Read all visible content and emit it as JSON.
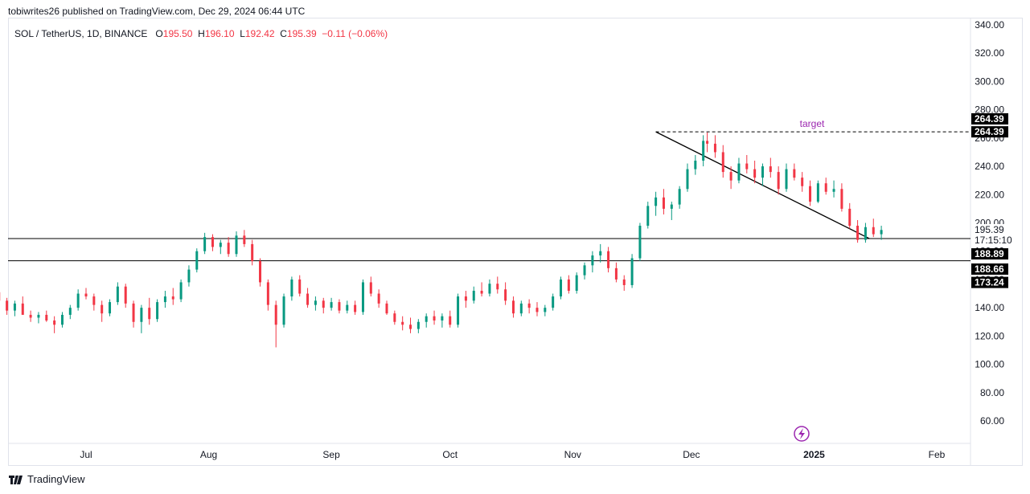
{
  "header": {
    "published": "tobiwrites26 published on TradingView.com, Dec 29, 2024 06:44 UTC"
  },
  "legend": {
    "symbol": "SOL / TetherUS, 1D, BINANCE",
    "o_label": "O",
    "o_value": "195.50",
    "h_label": "H",
    "h_value": "196.10",
    "l_label": "L",
    "l_value": "192.42",
    "c_label": "C",
    "c_value": "195.39",
    "change": "−0.11 (−0.06%)"
  },
  "footer": {
    "brand": "TradingView"
  },
  "colors": {
    "up": "#089981",
    "down": "#f23645",
    "target": "#9c27b0",
    "line": "#000000"
  },
  "chart_data": {
    "type": "candlestick",
    "title": "",
    "y_ticks": [
      "60.00",
      "80.00",
      "100.00",
      "120.00",
      "140.00",
      "160.00",
      "180.00",
      "200.00",
      "220.00",
      "240.00",
      "260.00",
      "280.00",
      "300.00",
      "320.00",
      "340.00"
    ],
    "x_ticks": [
      "Jul",
      "Aug",
      "Sep",
      "Oct",
      "Nov",
      "Dec",
      "2025",
      "Feb"
    ],
    "ylim": [
      48,
      348
    ],
    "x_range": [
      "2024-06-01",
      "2025-02-18"
    ],
    "grid": false,
    "price_labels": [
      "264.39",
      "264.39",
      "195.39",
      "17:15:10",
      "188.89",
      "188.66",
      "173.24"
    ],
    "target_label": "target",
    "horizontal_lines": [
      188.89,
      173.24
    ],
    "target_level": 264.39,
    "trendline": {
      "start": [
        "2024-11-22",
        264.39
      ],
      "end": [
        "2025-01-15",
        188.89
      ]
    },
    "ohlc": [
      [
        "2024-06-01",
        156,
        160,
        146,
        150
      ],
      [
        "2024-06-03",
        150,
        153,
        145,
        148
      ],
      [
        "2024-06-05",
        148,
        152,
        142,
        147
      ],
      [
        "2024-06-07",
        147,
        154,
        143,
        151
      ],
      [
        "2024-06-09",
        151,
        156,
        147,
        145
      ],
      [
        "2024-06-11",
        145,
        147,
        135,
        138
      ],
      [
        "2024-06-13",
        138,
        145,
        134,
        143
      ],
      [
        "2024-06-15",
        143,
        148,
        138,
        135
      ],
      [
        "2024-06-17",
        135,
        138,
        130,
        133
      ],
      [
        "2024-06-19",
        133,
        137,
        129,
        135
      ],
      [
        "2024-06-21",
        135,
        138,
        130,
        131
      ],
      [
        "2024-06-23",
        131,
        134,
        122,
        128
      ],
      [
        "2024-06-25",
        128,
        137,
        126,
        135
      ],
      [
        "2024-06-27",
        135,
        142,
        132,
        140
      ],
      [
        "2024-06-29",
        140,
        153,
        138,
        150
      ],
      [
        "2024-07-01",
        150,
        154,
        146,
        148
      ],
      [
        "2024-07-03",
        148,
        150,
        138,
        142
      ],
      [
        "2024-07-05",
        142,
        145,
        130,
        136
      ],
      [
        "2024-07-07",
        136,
        146,
        134,
        144
      ],
      [
        "2024-07-09",
        144,
        158,
        142,
        155
      ],
      [
        "2024-07-11",
        155,
        157,
        140,
        143
      ],
      [
        "2024-07-13",
        143,
        145,
        126,
        130
      ],
      [
        "2024-07-15",
        130,
        142,
        122,
        140
      ],
      [
        "2024-07-17",
        140,
        147,
        128,
        132
      ],
      [
        "2024-07-19",
        132,
        146,
        130,
        144
      ],
      [
        "2024-07-21",
        144,
        152,
        140,
        148
      ],
      [
        "2024-07-23",
        148,
        154,
        142,
        146
      ],
      [
        "2024-07-25",
        146,
        160,
        144,
        158
      ],
      [
        "2024-07-27",
        158,
        170,
        155,
        167
      ],
      [
        "2024-07-29",
        167,
        182,
        165,
        180
      ],
      [
        "2024-07-31",
        180,
        193,
        178,
        190
      ],
      [
        "2024-08-02",
        190,
        192,
        180,
        183
      ],
      [
        "2024-08-04",
        183,
        188,
        178,
        186
      ],
      [
        "2024-08-06",
        186,
        190,
        176,
        178
      ],
      [
        "2024-08-08",
        178,
        194,
        176,
        191
      ],
      [
        "2024-08-10",
        191,
        195,
        183,
        185
      ],
      [
        "2024-08-12",
        185,
        188,
        170,
        173
      ],
      [
        "2024-08-14",
        173,
        175,
        155,
        158
      ],
      [
        "2024-08-16",
        158,
        160,
        138,
        142
      ],
      [
        "2024-08-18",
        142,
        145,
        112,
        128
      ],
      [
        "2024-08-20",
        128,
        150,
        126,
        148
      ],
      [
        "2024-08-22",
        148,
        162,
        145,
        160
      ],
      [
        "2024-08-24",
        160,
        163,
        148,
        150
      ],
      [
        "2024-08-26",
        150,
        154,
        140,
        142
      ],
      [
        "2024-08-28",
        142,
        148,
        138,
        145
      ],
      [
        "2024-08-30",
        145,
        147,
        136,
        140
      ],
      [
        "2024-09-01",
        140,
        147,
        138,
        144
      ],
      [
        "2024-09-03",
        144,
        146,
        136,
        138
      ],
      [
        "2024-09-05",
        138,
        145,
        136,
        142
      ],
      [
        "2024-09-07",
        142,
        145,
        135,
        137
      ],
      [
        "2024-09-09",
        137,
        160,
        135,
        158
      ],
      [
        "2024-09-11",
        158,
        162,
        148,
        150
      ],
      [
        "2024-09-13",
        150,
        153,
        140,
        143
      ],
      [
        "2024-09-15",
        143,
        145,
        135,
        136
      ],
      [
        "2024-09-17",
        136,
        138,
        128,
        130
      ],
      [
        "2024-09-19",
        130,
        134,
        124,
        128
      ],
      [
        "2024-09-21",
        128,
        133,
        122,
        125
      ],
      [
        "2024-09-23",
        125,
        132,
        122,
        130
      ],
      [
        "2024-09-25",
        130,
        136,
        126,
        134
      ],
      [
        "2024-09-27",
        134,
        138,
        128,
        131
      ],
      [
        "2024-09-29",
        131,
        136,
        126,
        134
      ],
      [
        "2024-10-01",
        134,
        138,
        126,
        128
      ],
      [
        "2024-10-03",
        128,
        150,
        126,
        148
      ],
      [
        "2024-10-05",
        148,
        152,
        140,
        145
      ],
      [
        "2024-10-07",
        145,
        155,
        143,
        152
      ],
      [
        "2024-10-09",
        152,
        158,
        148,
        150
      ],
      [
        "2024-10-11",
        150,
        160,
        148,
        157
      ],
      [
        "2024-10-13",
        157,
        162,
        150,
        153
      ],
      [
        "2024-10-15",
        153,
        158,
        142,
        145
      ],
      [
        "2024-10-17",
        145,
        148,
        133,
        136
      ],
      [
        "2024-10-19",
        136,
        145,
        134,
        143
      ],
      [
        "2024-10-21",
        143,
        146,
        136,
        140
      ],
      [
        "2024-10-23",
        140,
        144,
        134,
        137
      ],
      [
        "2024-10-25",
        137,
        142,
        134,
        140
      ],
      [
        "2024-10-27",
        140,
        150,
        138,
        148
      ],
      [
        "2024-10-29",
        148,
        162,
        146,
        160
      ],
      [
        "2024-10-31",
        160,
        163,
        150,
        152
      ],
      [
        "2024-11-02",
        152,
        165,
        150,
        163
      ],
      [
        "2024-11-04",
        163,
        172,
        160,
        170
      ],
      [
        "2024-11-06",
        170,
        180,
        165,
        177
      ],
      [
        "2024-11-08",
        177,
        185,
        172,
        180
      ],
      [
        "2024-11-10",
        180,
        183,
        165,
        168
      ],
      [
        "2024-11-12",
        168,
        172,
        158,
        160
      ],
      [
        "2024-11-14",
        160,
        163,
        152,
        156
      ],
      [
        "2024-11-16",
        156,
        178,
        154,
        175
      ],
      [
        "2024-11-18",
        175,
        200,
        173,
        198
      ],
      [
        "2024-11-20",
        198,
        215,
        196,
        212
      ],
      [
        "2024-11-22",
        212,
        222,
        205,
        218
      ],
      [
        "2024-11-24",
        218,
        224,
        206,
        210
      ],
      [
        "2024-11-26",
        210,
        215,
        202,
        213
      ],
      [
        "2024-11-28",
        213,
        226,
        210,
        224
      ],
      [
        "2024-11-30",
        224,
        242,
        222,
        238
      ],
      [
        "2024-12-02",
        238,
        248,
        234,
        244
      ],
      [
        "2024-12-04",
        244,
        262,
        240,
        258
      ],
      [
        "2024-12-05",
        258,
        264,
        250,
        256
      ],
      [
        "2024-12-07",
        256,
        262,
        246,
        250
      ],
      [
        "2024-12-09",
        250,
        255,
        232,
        236
      ],
      [
        "2024-12-11",
        236,
        240,
        224,
        230
      ],
      [
        "2024-12-13",
        230,
        246,
        228,
        242
      ],
      [
        "2024-12-15",
        242,
        248,
        235,
        238
      ],
      [
        "2024-12-17",
        238,
        244,
        228,
        232
      ],
      [
        "2024-12-19",
        232,
        242,
        226,
        240
      ],
      [
        "2024-12-21",
        240,
        246,
        232,
        236
      ],
      [
        "2024-12-23",
        236,
        240,
        220,
        224
      ],
      [
        "2024-12-25",
        224,
        242,
        222,
        238
      ],
      [
        "2024-12-27",
        238,
        242,
        230,
        232
      ],
      [
        "2024-12-29",
        232,
        236,
        222,
        226
      ],
      [
        "2024-12-31",
        226,
        230,
        212,
        215
      ],
      [
        "2025-01-02",
        215,
        230,
        214,
        228
      ],
      [
        "2025-01-04",
        228,
        232,
        220,
        222
      ],
      [
        "2025-01-06",
        222,
        230,
        218,
        224
      ],
      [
        "2025-01-08",
        224,
        228,
        208,
        210
      ],
      [
        "2025-01-10",
        210,
        214,
        196,
        198
      ],
      [
        "2025-01-12",
        198,
        202,
        186,
        188
      ],
      [
        "2025-01-14",
        188,
        200,
        186,
        197
      ],
      [
        "2025-01-16",
        197,
        203,
        190,
        192
      ],
      [
        "2025-01-18",
        192,
        198,
        188,
        195
      ]
    ]
  }
}
